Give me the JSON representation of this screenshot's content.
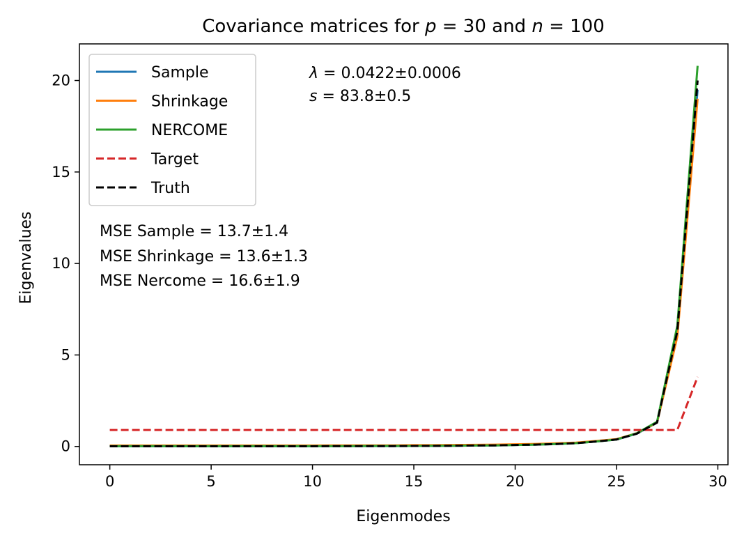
{
  "chart_data": {
    "type": "line",
    "title": "Covariance matrices for p = 30 and n = 100",
    "title_parts": {
      "prefix": "Covariance matrices for ",
      "p_symbol": "p",
      "p_eq": " = 30 and ",
      "n_symbol": "n",
      "n_eq": " = 100"
    },
    "xlabel": "Eigenmodes",
    "ylabel": "Eigenvalues",
    "xlim": [
      -1.5,
      30.5
    ],
    "ylim": [
      -1,
      22
    ],
    "xticks": [
      0,
      5,
      10,
      15,
      20,
      25,
      30
    ],
    "yticks": [
      0,
      5,
      10,
      15,
      20
    ],
    "x": [
      0,
      1,
      2,
      3,
      4,
      5,
      6,
      7,
      8,
      9,
      10,
      11,
      12,
      13,
      14,
      15,
      16,
      17,
      18,
      19,
      20,
      21,
      22,
      23,
      24,
      25,
      26,
      27,
      28,
      29
    ],
    "series": [
      {
        "name": "Sample",
        "color": "#1f77b4",
        "style": "solid",
        "values": [
          0.01,
          0.01,
          0.01,
          0.01,
          0.01,
          0.01,
          0.01,
          0.01,
          0.01,
          0.01,
          0.01,
          0.02,
          0.02,
          0.02,
          0.02,
          0.03,
          0.03,
          0.04,
          0.05,
          0.06,
          0.08,
          0.1,
          0.13,
          0.18,
          0.27,
          0.38,
          0.7,
          1.3,
          6.2,
          19.5
        ]
      },
      {
        "name": "Shrinkage",
        "color": "#ff7f0e",
        "style": "solid",
        "values": [
          0.05,
          0.05,
          0.05,
          0.05,
          0.05,
          0.05,
          0.05,
          0.05,
          0.05,
          0.05,
          0.05,
          0.06,
          0.06,
          0.06,
          0.06,
          0.07,
          0.07,
          0.08,
          0.09,
          0.1,
          0.12,
          0.14,
          0.17,
          0.21,
          0.3,
          0.4,
          0.72,
          1.3,
          6.0,
          19.0
        ]
      },
      {
        "name": "NERCOME",
        "color": "#2ca02c",
        "style": "solid",
        "values": [
          0.02,
          0.02,
          0.02,
          0.02,
          0.02,
          0.02,
          0.02,
          0.02,
          0.02,
          0.02,
          0.02,
          0.02,
          0.02,
          0.03,
          0.03,
          0.03,
          0.04,
          0.04,
          0.05,
          0.06,
          0.08,
          0.1,
          0.13,
          0.18,
          0.27,
          0.38,
          0.72,
          1.35,
          6.6,
          20.8
        ]
      },
      {
        "name": "Target",
        "color": "#d62728",
        "style": "dashed",
        "values": [
          0.9,
          0.9,
          0.9,
          0.9,
          0.9,
          0.9,
          0.9,
          0.9,
          0.9,
          0.9,
          0.9,
          0.9,
          0.9,
          0.9,
          0.9,
          0.9,
          0.9,
          0.9,
          0.9,
          0.9,
          0.9,
          0.9,
          0.9,
          0.9,
          0.9,
          0.9,
          0.9,
          0.9,
          0.9,
          3.8
        ]
      },
      {
        "name": "Truth",
        "color": "#000000",
        "style": "dashed",
        "values": [
          0.01,
          0.01,
          0.01,
          0.01,
          0.01,
          0.01,
          0.01,
          0.01,
          0.01,
          0.01,
          0.01,
          0.02,
          0.02,
          0.02,
          0.02,
          0.03,
          0.03,
          0.04,
          0.05,
          0.06,
          0.08,
          0.1,
          0.13,
          0.18,
          0.27,
          0.38,
          0.7,
          1.3,
          6.3,
          20.0
        ]
      }
    ],
    "legend_position": "upper-left",
    "grid": false,
    "annotations": {
      "lambda_symbol": "λ",
      "lambda_value": " = 0.0422±0.0006",
      "s_symbol": "s",
      "s_value": " = 83.8±0.5",
      "mse_sample": "MSE Sample  = 13.7±1.4",
      "mse_shrinkage": "MSE Shrinkage  = 13.6±1.3",
      "mse_nercome": "MSE Nercome  = 16.6±1.9"
    }
  }
}
